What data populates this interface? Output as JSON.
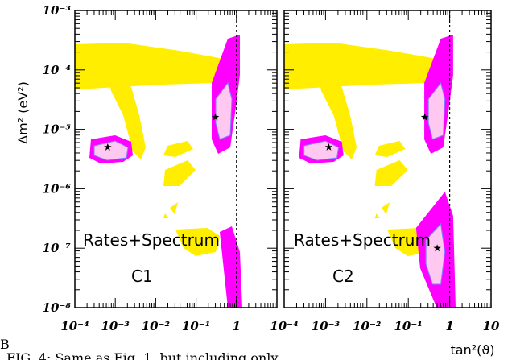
{
  "chart_data": [
    {
      "type": "scatter",
      "panel_label": "Rates+Spectrum",
      "panel_sublabel": "C1",
      "xlabel": "tan²(ϑ)",
      "ylabel": "Δm² (eV²)",
      "xscale": "log",
      "yscale": "log",
      "xlim": [
        0.0001,
        10
      ],
      "ylim": [
        1e-08,
        0.001
      ],
      "x_tick_labels": [
        "10⁻⁴",
        "10⁻³",
        "10⁻²",
        "10⁻¹",
        "1"
      ],
      "y_tick_labels": [
        "10⁻³",
        "10⁻⁴",
        "10⁻⁵",
        "10⁻⁶",
        "10⁻⁷",
        "10⁻⁸"
      ],
      "vertical_dashed_line_x": 1,
      "colors": {
        "outer": "#ff00ff",
        "inner": "#ffc8f0",
        "excluded": "#ffee00"
      },
      "best_fit_points": [
        {
          "x": 0.00065,
          "y": 5e-06
        },
        {
          "x": 0.3,
          "y": 1.6e-05
        }
      ]
    },
    {
      "type": "scatter",
      "panel_label": "Rates+Spectrum",
      "panel_sublabel": "C2",
      "xlabel": "tan²(ϑ)",
      "ylabel": "",
      "xscale": "log",
      "yscale": "log",
      "xlim": [
        0.0001,
        10
      ],
      "ylim": [
        1e-08,
        0.001
      ],
      "x_tick_labels": [
        "10⁻⁴",
        "10⁻³",
        "10⁻²",
        "10⁻¹",
        "1",
        "10"
      ],
      "vertical_dashed_line_x": 1,
      "colors": {
        "outer": "#ff00ff",
        "inner": "#ffc8f0",
        "excluded": "#ffee00"
      },
      "best_fit_points": [
        {
          "x": 0.0012,
          "y": 5e-06
        },
        {
          "x": 0.25,
          "y": 1.6e-05
        },
        {
          "x": 0.5,
          "y": 1e-07
        }
      ]
    }
  ],
  "caption_fragment": "FIG. 4: Same as Fig. 1, but including only",
  "caption_marker": "B"
}
